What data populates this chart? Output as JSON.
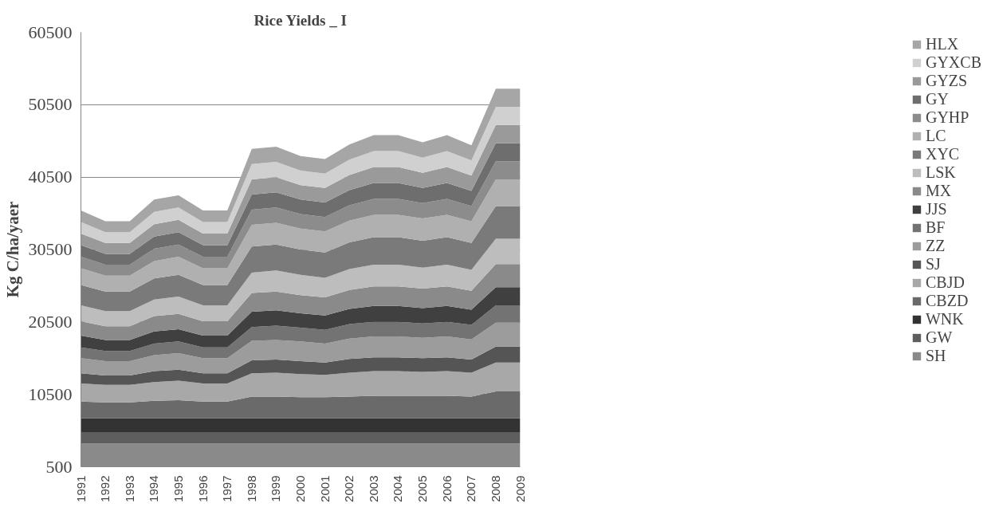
{
  "chart_data": {
    "type": "area",
    "stacked": true,
    "title": "Rice Yields _ I",
    "ylabel": "Kg C/ha/yaer",
    "categories": [
      "1991",
      "1992",
      "1993",
      "1994",
      "1995",
      "1996",
      "1997",
      "1998",
      "1999",
      "2000",
      "2001",
      "2002",
      "2003",
      "2004",
      "2005",
      "2006",
      "2007",
      "2008",
      "2009"
    ],
    "ylim": [
      500,
      60500
    ],
    "yticks": [
      500,
      10500,
      20500,
      30500,
      40500,
      50500,
      60500
    ],
    "grid": "y",
    "legend": "right",
    "series": [
      {
        "name": "SH",
        "color": "#8a8a8a",
        "values": [
          3700,
          3700,
          3700,
          3700,
          3700,
          3700,
          3700,
          3700,
          3700,
          3700,
          3700,
          3700,
          3700,
          3700,
          3700,
          3700,
          3700,
          3700,
          3700
        ]
      },
      {
        "name": "GW",
        "color": "#5e5e5e",
        "values": [
          1500,
          1500,
          1500,
          1500,
          1500,
          1500,
          1500,
          1500,
          1500,
          1500,
          1500,
          1500,
          1500,
          1500,
          1500,
          1500,
          1500,
          1500,
          1500
        ]
      },
      {
        "name": "WNK",
        "color": "#333333",
        "values": [
          2000,
          2000,
          2000,
          2000,
          2000,
          2000,
          2000,
          2000,
          2000,
          2000,
          2000,
          2000,
          2000,
          2000,
          2000,
          2000,
          2000,
          2000,
          2000
        ]
      },
      {
        "name": "CBZD",
        "color": "#6a6a6a",
        "values": [
          2300,
          2200,
          2200,
          2400,
          2500,
          2300,
          2300,
          3000,
          3000,
          2900,
          2900,
          3000,
          3100,
          3100,
          3100,
          3100,
          3000,
          3700,
          3700
        ]
      },
      {
        "name": "CBJD",
        "color": "#a8a8a8",
        "values": [
          2500,
          2400,
          2400,
          2600,
          2700,
          2500,
          2500,
          3200,
          3300,
          3200,
          3100,
          3300,
          3400,
          3400,
          3300,
          3400,
          3300,
          4000,
          4000
        ]
      },
      {
        "name": "SJ",
        "color": "#555555",
        "values": [
          1400,
          1300,
          1300,
          1500,
          1500,
          1400,
          1400,
          1800,
          1800,
          1800,
          1700,
          1900,
          1900,
          1900,
          1900,
          1900,
          1800,
          2200,
          2200
        ]
      },
      {
        "name": "ZZ",
        "color": "#9c9c9c",
        "values": [
          2100,
          2000,
          2000,
          2200,
          2300,
          2100,
          2100,
          2700,
          2700,
          2700,
          2600,
          2800,
          2900,
          2900,
          2800,
          2900,
          2800,
          3300,
          3300
        ]
      },
      {
        "name": "BF",
        "color": "#737373",
        "values": [
          1500,
          1400,
          1400,
          1600,
          1600,
          1500,
          1500,
          1900,
          2000,
          1900,
          1900,
          2000,
          2000,
          2000,
          2000,
          2000,
          2000,
          2400,
          2400
        ]
      },
      {
        "name": "JJS",
        "color": "#404040",
        "values": [
          1600,
          1500,
          1500,
          1700,
          1700,
          1600,
          1600,
          2100,
          2100,
          2000,
          2000,
          2100,
          2200,
          2200,
          2100,
          2200,
          2100,
          2500,
          2500
        ]
      },
      {
        "name": "MX",
        "color": "#8a8a8a",
        "values": [
          2000,
          1900,
          1900,
          2100,
          2100,
          2000,
          2000,
          2600,
          2600,
          2500,
          2500,
          2600,
          2700,
          2700,
          2700,
          2700,
          2600,
          3200,
          3200
        ]
      },
      {
        "name": "LSK",
        "color": "#bdbdbd",
        "values": [
          2200,
          2100,
          2100,
          2300,
          2400,
          2200,
          2200,
          2800,
          2900,
          2800,
          2700,
          2900,
          3000,
          3000,
          2900,
          3000,
          2900,
          3500,
          3500
        ]
      },
      {
        "name": "XYC",
        "color": "#7a7a7a",
        "values": [
          2800,
          2700,
          2700,
          2900,
          3000,
          2800,
          2800,
          3600,
          3600,
          3500,
          3500,
          3700,
          3800,
          3800,
          3700,
          3800,
          3700,
          4500,
          4500
        ]
      },
      {
        "name": "LC",
        "color": "#b0b0b0",
        "values": [
          2300,
          2200,
          2200,
          2400,
          2500,
          2300,
          2300,
          3000,
          3000,
          2900,
          2900,
          3000,
          3100,
          3100,
          3100,
          3100,
          3000,
          3700,
          3700
        ]
      },
      {
        "name": "GYHP",
        "color": "#8c8c8c",
        "values": [
          1600,
          1500,
          1500,
          1700,
          1700,
          1600,
          1600,
          2100,
          2100,
          2000,
          2000,
          2100,
          2200,
          2200,
          2100,
          2200,
          2100,
          2500,
          2500
        ]
      },
      {
        "name": "GY",
        "color": "#6e6e6e",
        "values": [
          1600,
          1500,
          1500,
          1700,
          1700,
          1600,
          1600,
          2100,
          2100,
          2000,
          2000,
          2100,
          2200,
          2200,
          2100,
          2200,
          2100,
          2500,
          2500
        ]
      },
      {
        "name": "GYZS",
        "color": "#9a9a9a",
        "values": [
          1600,
          1500,
          1500,
          1700,
          1700,
          1600,
          1600,
          2100,
          2100,
          2000,
          2000,
          2100,
          2200,
          2200,
          2100,
          2200,
          2100,
          2500,
          2500
        ]
      },
      {
        "name": "GYXCB",
        "color": "#d0d0d0",
        "values": [
          1600,
          1500,
          1500,
          1700,
          1700,
          1600,
          1600,
          2100,
          2100,
          2000,
          2000,
          2100,
          2200,
          2200,
          2100,
          2200,
          2100,
          2500,
          2500
        ]
      },
      {
        "name": "HLX",
        "color": "#a6a6a6",
        "values": [
          1600,
          1500,
          1500,
          1700,
          1700,
          1600,
          1600,
          2100,
          2100,
          2000,
          2000,
          2100,
          2200,
          2200,
          2100,
          2200,
          2100,
          2500,
          2500
        ]
      }
    ]
  }
}
